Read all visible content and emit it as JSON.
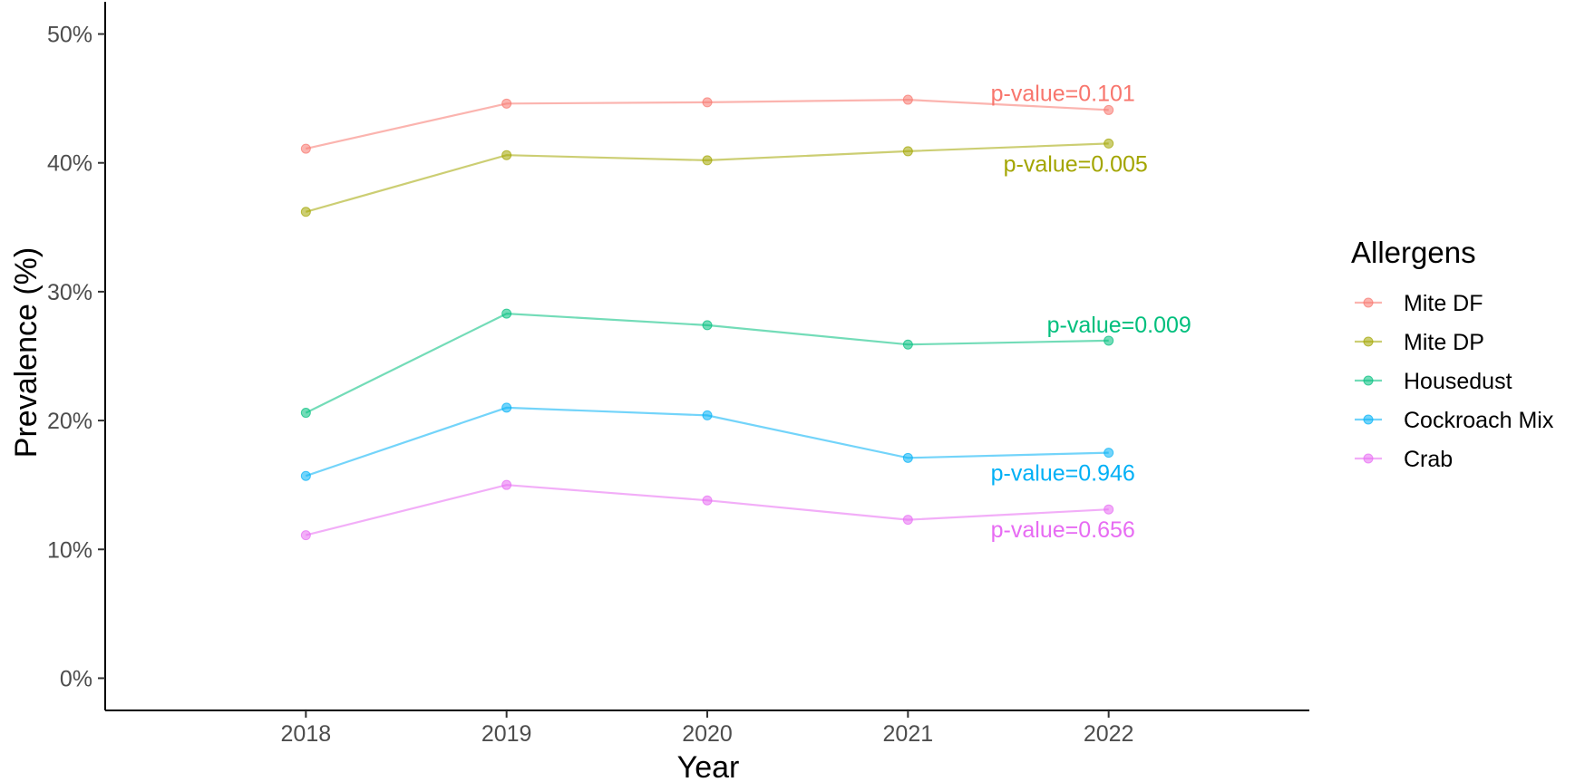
{
  "chart_data": {
    "type": "line",
    "title": "",
    "xlabel": "Year",
    "ylabel": "Prevalence (%)",
    "x": [
      2018,
      2019,
      2020,
      2021,
      2022
    ],
    "x_tick_labels": [
      "2018",
      "2019",
      "2020",
      "2021",
      "2022"
    ],
    "xlim": [
      2017.0,
      2023.0
    ],
    "ylim": [
      -2.5,
      52.5
    ],
    "y_ticks": [
      0,
      10,
      20,
      30,
      40,
      50
    ],
    "y_tick_labels": [
      "0%",
      "10%",
      "20%",
      "30%",
      "40%",
      "50%"
    ],
    "grid": false,
    "legend": {
      "title": "Allergens",
      "placement": "right"
    },
    "series": [
      {
        "name": "Mite DF",
        "color": "#F8766D",
        "values": [
          41.1,
          44.6,
          44.7,
          44.9,
          44.1
        ],
        "annotation": "p-value=0.101"
      },
      {
        "name": "Mite DP",
        "color": "#A3A500",
        "values": [
          36.2,
          40.6,
          40.2,
          40.9,
          41.5
        ],
        "annotation": "p-value=0.005"
      },
      {
        "name": "Housedust",
        "color": "#00BF7D",
        "values": [
          20.6,
          28.3,
          27.4,
          25.9,
          26.2
        ],
        "annotation": "p-value=0.009"
      },
      {
        "name": "Cockroach Mix",
        "color": "#00B0F6",
        "values": [
          15.7,
          21.0,
          20.4,
          17.1,
          17.5
        ],
        "annotation": "p-value=0.946"
      },
      {
        "name": "Crab",
        "color": "#E76BF3",
        "values": [
          11.1,
          15.0,
          13.8,
          12.3,
          13.1
        ],
        "annotation": "p-value=0.656"
      }
    ]
  }
}
